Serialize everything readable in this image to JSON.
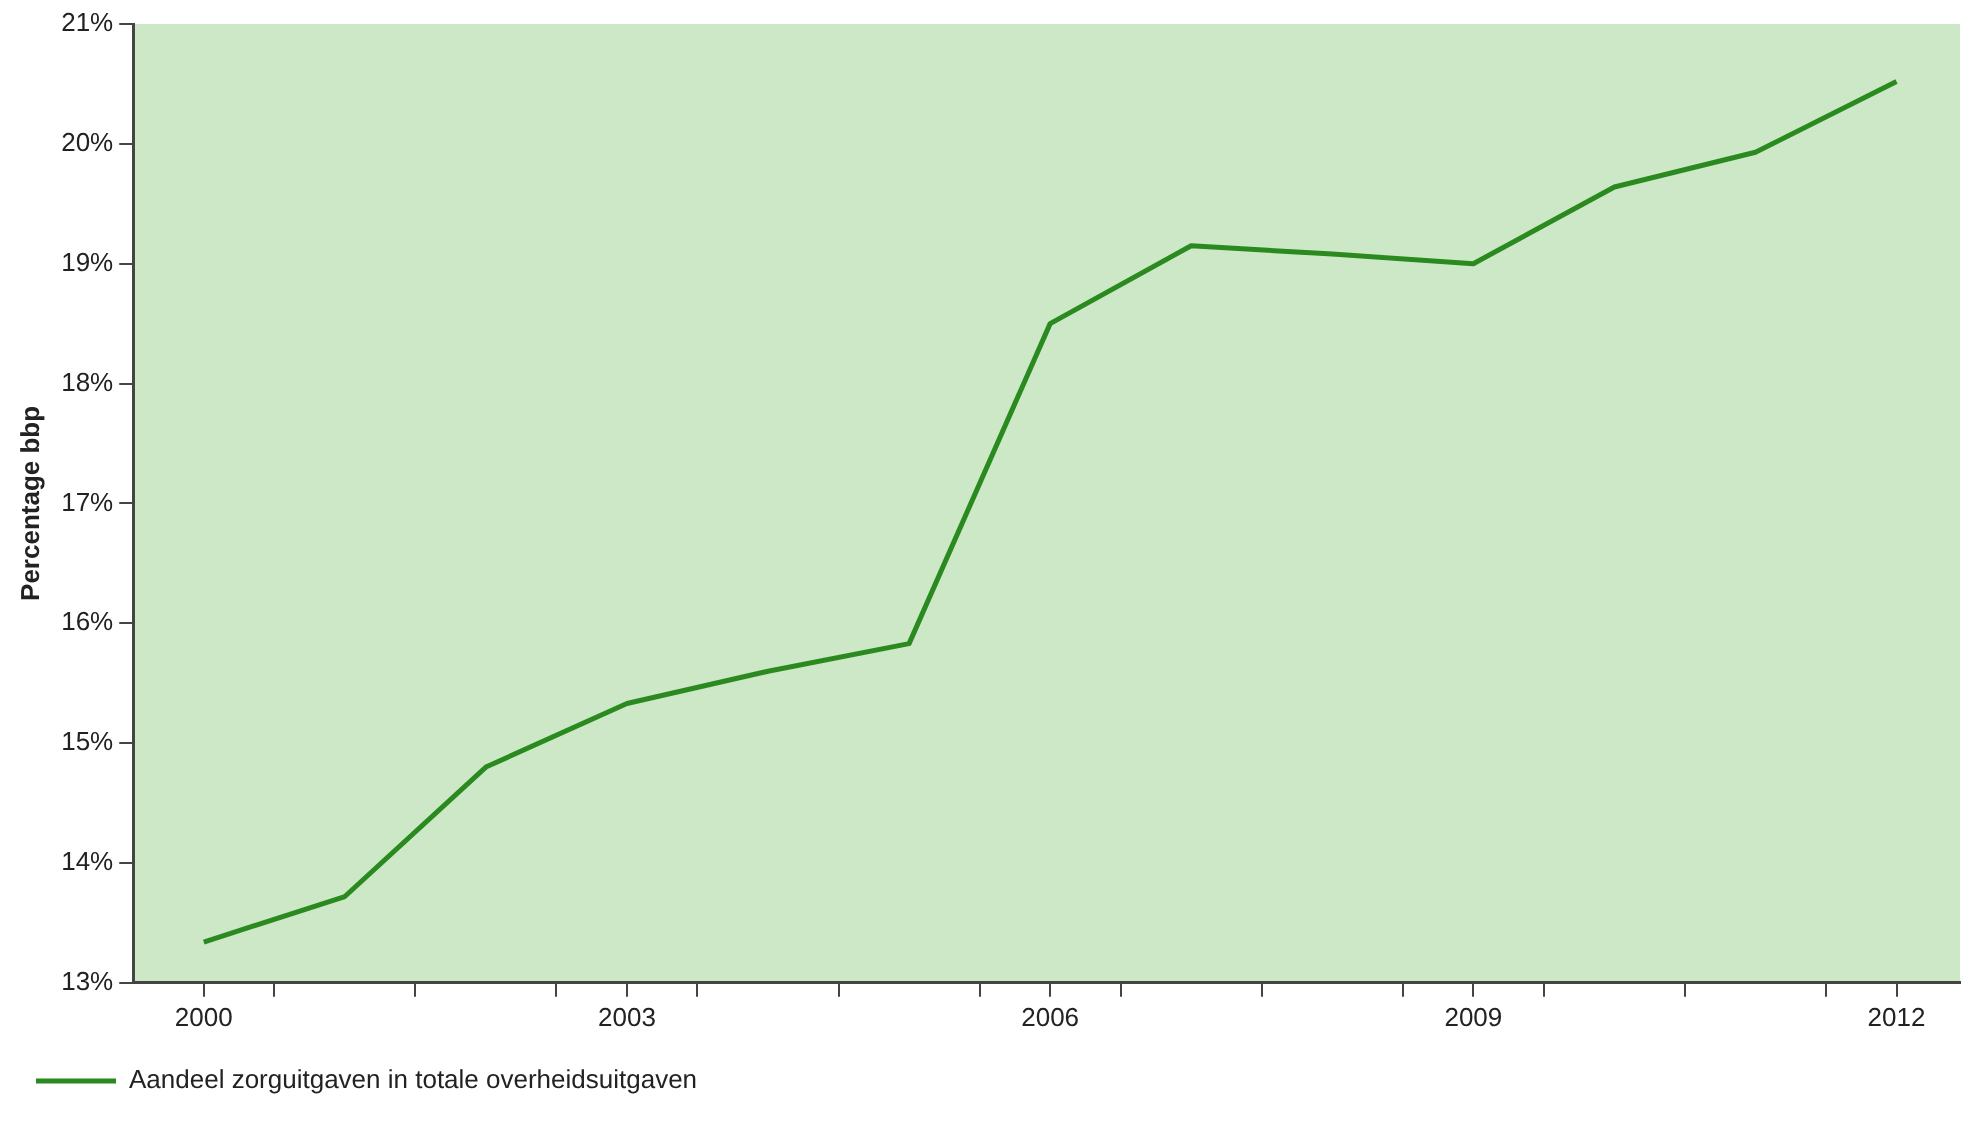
{
  "chart_data": {
    "type": "line",
    "ylabel": "Percentage bbp",
    "x": [
      2000,
      2001,
      2002,
      2003,
      2004,
      2005,
      2006,
      2007,
      2008,
      2009,
      2010,
      2011,
      2012
    ],
    "series": [
      {
        "name": "Aandeel zorguitgaven in totale overheidsuitgaven",
        "color": "#2a8a1f",
        "values": [
          13.34,
          13.72,
          14.8,
          15.33,
          15.6,
          15.83,
          18.5,
          19.15,
          19.08,
          19.0,
          19.64,
          19.93,
          20.52
        ]
      }
    ],
    "xlim": [
      1999.5,
      2012.45
    ],
    "xticks": [
      2000,
      {
        "value": 2000.5,
        "label": null
      },
      {
        "value": 2001.5,
        "label": null
      },
      {
        "value": 2002.5,
        "label": null
      },
      2003,
      {
        "value": 2003.5,
        "label": null
      },
      {
        "value": 2004.5,
        "label": null
      },
      {
        "value": 2005.5,
        "label": null
      },
      2006,
      {
        "value": 2006.5,
        "label": null
      },
      {
        "value": 2007.5,
        "label": null
      },
      {
        "value": 2008.5,
        "label": null
      },
      2009,
      {
        "value": 2009.5,
        "label": null
      },
      {
        "value": 2010.5,
        "label": null
      },
      {
        "value": 2011.5,
        "label": null
      },
      2012
    ],
    "ylim": [
      13,
      21
    ],
    "yticks": [
      {
        "value": 13,
        "label": "13%"
      },
      {
        "value": 14,
        "label": "14%"
      },
      {
        "value": 15,
        "label": "15%"
      },
      {
        "value": 16,
        "label": "16%"
      },
      {
        "value": 17,
        "label": "17%"
      },
      {
        "value": 18,
        "label": "18%"
      },
      {
        "value": 19,
        "label": "19%"
      },
      {
        "value": 20,
        "label": "20%"
      },
      {
        "value": 21,
        "label": "21%"
      }
    ],
    "legend": "bottom left",
    "line_style": "solid",
    "marker": "none"
  }
}
